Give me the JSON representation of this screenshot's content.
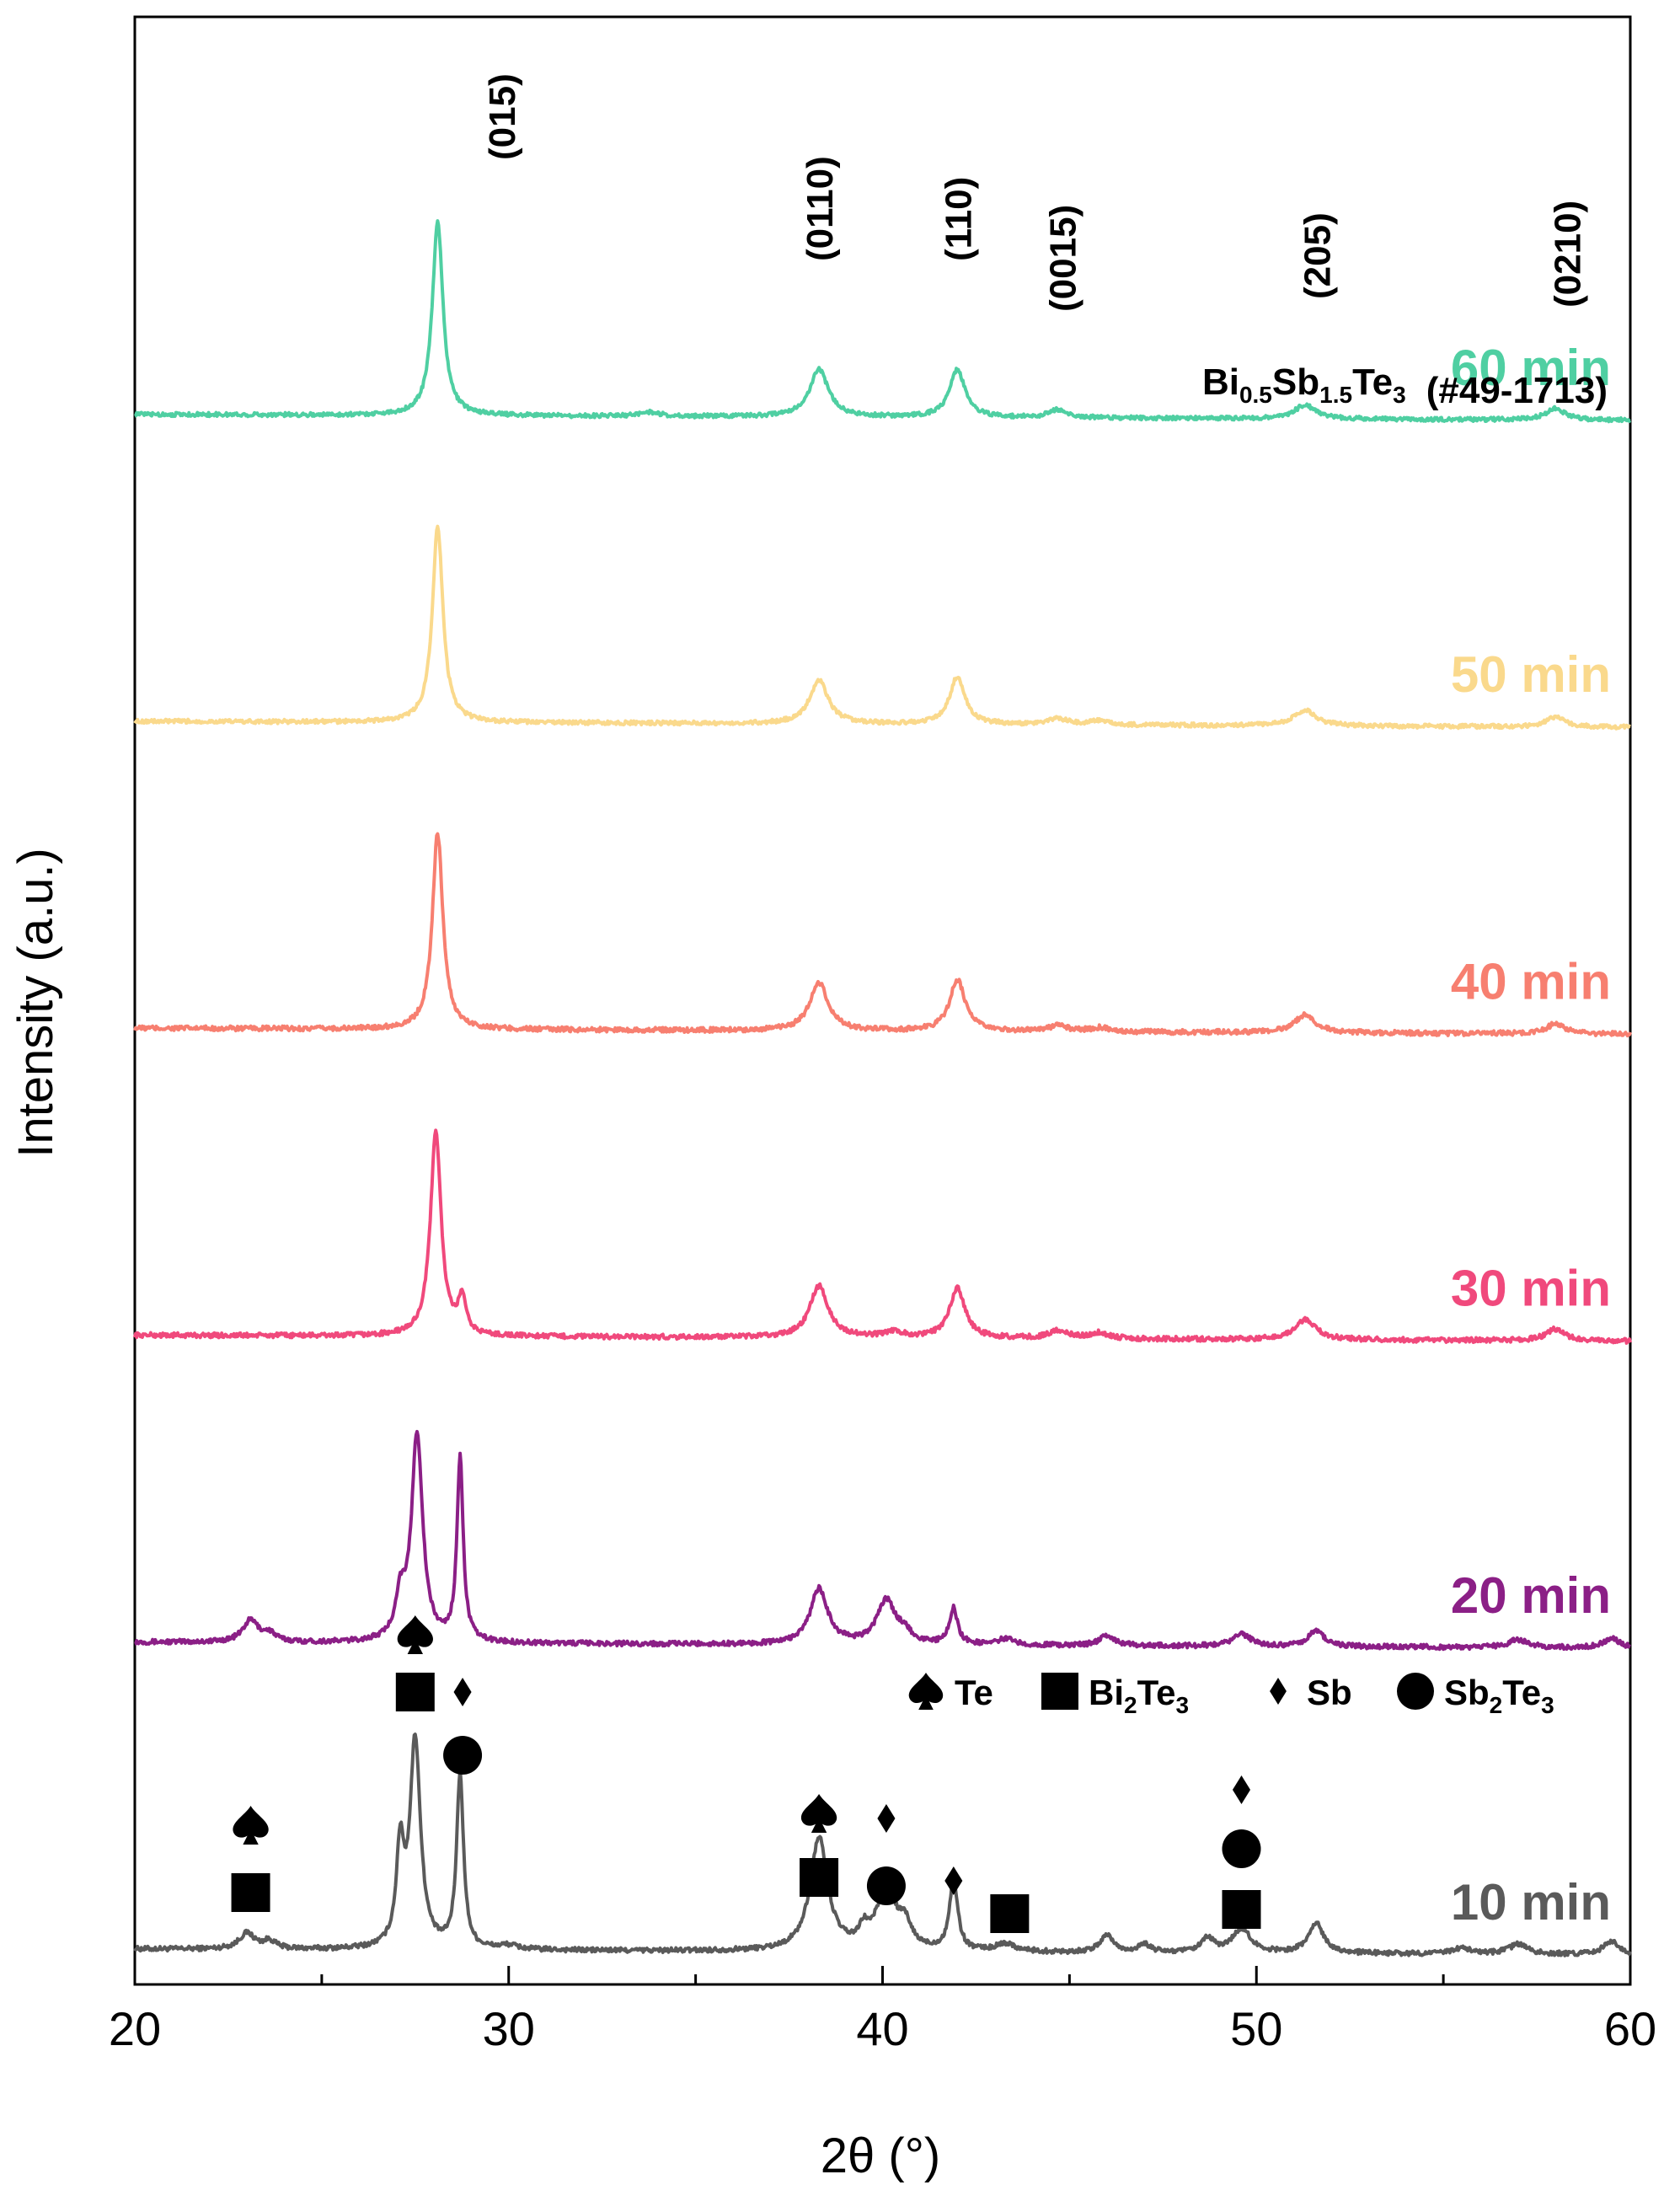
{
  "chart_data": {
    "type": "line",
    "title": "",
    "xlabel": "2θ (°)",
    "ylabel": "Intensity (a.u.)",
    "xlim": [
      20,
      60
    ],
    "xticks": [
      20,
      30,
      40,
      50,
      60
    ],
    "xtick_labels": [
      "20",
      "30",
      "40",
      "50",
      "60"
    ],
    "yticks": "none",
    "grid": false,
    "series": [
      {
        "name": "10 min",
        "color": "#5a5a5a",
        "offset": 0,
        "noise": 1.2,
        "baseline": [
          [
            20,
            0
          ],
          [
            60,
            -3
          ]
        ],
        "peaks": [
          [
            23.0,
            8,
            0.25
          ],
          [
            23.6,
            4,
            0.2
          ],
          [
            27.1,
            48,
            0.12
          ],
          [
            27.5,
            105,
            0.17
          ],
          [
            28.7,
            88,
            0.11
          ],
          [
            30.0,
            2,
            0.3
          ],
          [
            38.3,
            57,
            0.28
          ],
          [
            39.5,
            8,
            0.15
          ],
          [
            40.1,
            32,
            0.3
          ],
          [
            40.6,
            11,
            0.2
          ],
          [
            41.9,
            36,
            0.13
          ],
          [
            43.3,
            4,
            0.3
          ],
          [
            46.0,
            9,
            0.2
          ],
          [
            47.0,
            4,
            0.2
          ],
          [
            48.7,
            7,
            0.2
          ],
          [
            49.6,
            12,
            0.3
          ],
          [
            51.6,
            15,
            0.25
          ],
          [
            55.5,
            3,
            0.3
          ],
          [
            57.0,
            5,
            0.3
          ],
          [
            59.5,
            7,
            0.25
          ]
        ]
      },
      {
        "name": "20 min",
        "color": "#8b1f86",
        "offset": 155,
        "noise": 1.2,
        "baseline": [
          [
            20,
            0
          ],
          [
            60,
            -3
          ]
        ],
        "peaks": [
          [
            23.1,
            11,
            0.25
          ],
          [
            23.6,
            4,
            0.2
          ],
          [
            27.1,
            20,
            0.15
          ],
          [
            27.55,
            105,
            0.18
          ],
          [
            28.7,
            92,
            0.1
          ],
          [
            38.3,
            28,
            0.28
          ],
          [
            40.1,
            22,
            0.3
          ],
          [
            40.6,
            5,
            0.2
          ],
          [
            41.9,
            18,
            0.13
          ],
          [
            43.3,
            3,
            0.3
          ],
          [
            46.0,
            5,
            0.25
          ],
          [
            49.6,
            6,
            0.3
          ],
          [
            51.6,
            8,
            0.25
          ],
          [
            57.0,
            4,
            0.3
          ],
          [
            59.5,
            5,
            0.25
          ]
        ]
      },
      {
        "name": "30 min",
        "color": "#f0497c",
        "offset": 310,
        "noise": 1.2,
        "baseline": [
          [
            20,
            0
          ],
          [
            60,
            -3
          ]
        ],
        "peaks": [
          [
            28.05,
            104,
            0.17
          ],
          [
            28.75,
            18,
            0.12
          ],
          [
            38.3,
            26,
            0.3
          ],
          [
            40.3,
            3,
            0.3
          ],
          [
            42.0,
            25,
            0.25
          ],
          [
            44.7,
            4,
            0.3
          ],
          [
            45.8,
            3,
            0.3
          ],
          [
            51.3,
            10,
            0.35
          ],
          [
            58.0,
            6,
            0.3
          ]
        ]
      },
      {
        "name": "40 min",
        "color": "#f77f70",
        "offset": 465,
        "noise": 1.2,
        "baseline": [
          [
            20,
            0
          ],
          [
            60,
            -3
          ]
        ],
        "peaks": [
          [
            28.1,
            99,
            0.17
          ],
          [
            38.3,
            24,
            0.3
          ],
          [
            42.0,
            26,
            0.25
          ],
          [
            44.7,
            3,
            0.3
          ],
          [
            45.8,
            2,
            0.3
          ],
          [
            51.3,
            9,
            0.35
          ],
          [
            58.0,
            5,
            0.3
          ]
        ]
      },
      {
        "name": "50 min",
        "color": "#fad98c",
        "offset": 620,
        "noise": 1.0,
        "baseline": [
          [
            20,
            0
          ],
          [
            60,
            -3
          ]
        ],
        "peaks": [
          [
            28.1,
            99,
            0.17
          ],
          [
            38.3,
            22,
            0.3
          ],
          [
            42.0,
            24,
            0.25
          ],
          [
            44.7,
            3,
            0.3
          ],
          [
            45.8,
            2,
            0.3
          ],
          [
            51.3,
            8,
            0.35
          ],
          [
            58.0,
            5,
            0.3
          ]
        ]
      },
      {
        "name": "60 min",
        "color": "#4fcfa2",
        "offset": 775,
        "noise": 1.0,
        "baseline": [
          [
            20,
            0
          ],
          [
            60,
            -3
          ]
        ],
        "peaks": [
          [
            28.1,
            98,
            0.17
          ],
          [
            33.8,
            2,
            0.3
          ],
          [
            38.3,
            24,
            0.3
          ],
          [
            42.0,
            24,
            0.25
          ],
          [
            44.7,
            4,
            0.3
          ],
          [
            51.3,
            7,
            0.35
          ],
          [
            58.0,
            6,
            0.3
          ]
        ]
      }
    ],
    "series_labels": [
      "10 min",
      "20 min",
      "30 min",
      "40 min",
      "50 min",
      "60 min"
    ],
    "peak_indices": [
      {
        "label": "(015)",
        "x": 29.8
      },
      {
        "label": "(0110)",
        "x": 38.3
      },
      {
        "label": "(110)",
        "x": 42.0
      },
      {
        "label": "(0015)",
        "x": 44.8
      },
      {
        "label": "(205)",
        "x": 51.6
      },
      {
        "label": "(0210)",
        "x": 58.3
      }
    ],
    "reference_phase": {
      "formula_parts": [
        "Bi",
        "0.5",
        "Sb",
        "1.5",
        "Te",
        "3"
      ],
      "card": "(#49-1713)"
    },
    "legend": {
      "placement": "right, above bottom trace",
      "entries": [
        {
          "symbol": "spade",
          "text_parts": [
            "Te"
          ]
        },
        {
          "symbol": "square",
          "text_parts": [
            "Bi",
            "2",
            "Te",
            "3"
          ]
        },
        {
          "symbol": "diamond",
          "text_parts": [
            "Sb"
          ]
        },
        {
          "symbol": "circle",
          "text_parts": [
            "Sb",
            "2",
            "Te",
            "3"
          ]
        }
      ]
    },
    "phase_markers": [
      {
        "x": 23.1,
        "symbols": [
          "spade",
          "square"
        ]
      },
      {
        "x": 27.5,
        "symbols": [
          "spade",
          "square"
        ]
      },
      {
        "x": 28.7,
        "symbols": [
          "diamond",
          "circle"
        ]
      },
      {
        "x": 38.3,
        "symbols": [
          "spade",
          "square"
        ]
      },
      {
        "x": 40.1,
        "symbols": [
          "diamond",
          "circle"
        ]
      },
      {
        "x": 41.9,
        "symbols": [
          "diamond"
        ]
      },
      {
        "x": 43.4,
        "symbols": [
          "square"
        ]
      },
      {
        "x": 49.6,
        "symbols": [
          "diamond",
          "circle",
          "square"
        ]
      }
    ]
  }
}
